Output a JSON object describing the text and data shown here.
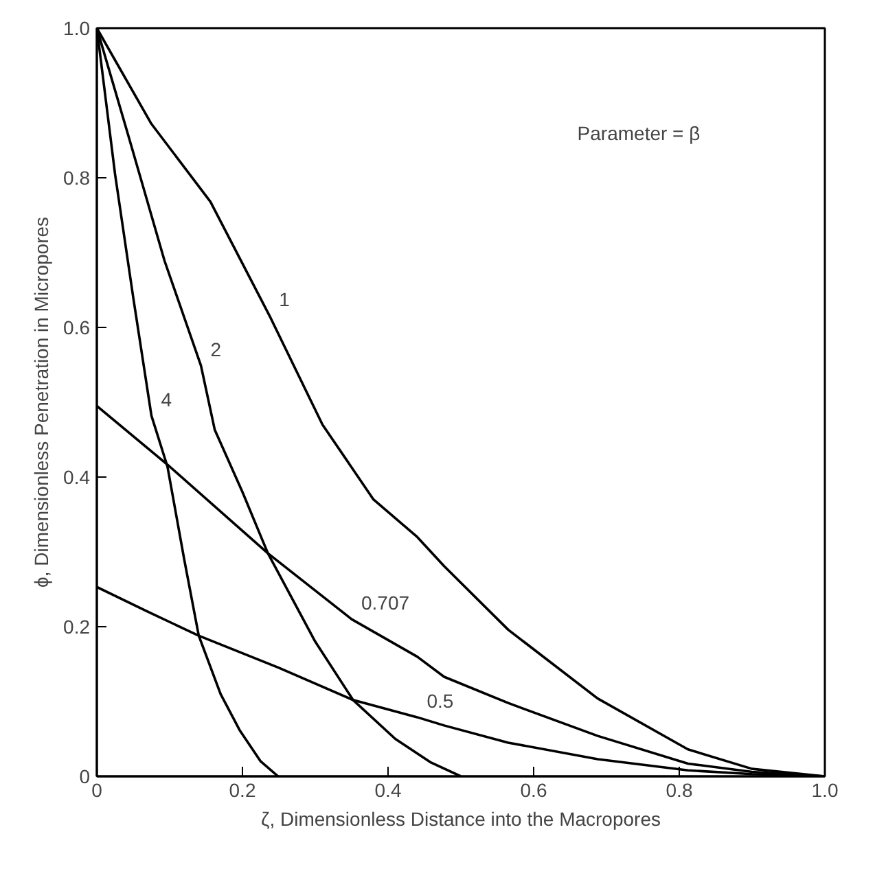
{
  "chart_data": {
    "type": "line",
    "xlabel": "ζ, Dimensionless Distance into the Macropores",
    "ylabel": "ϕ, Dimensionless Penetration in Micropores",
    "xlim": [
      0,
      1
    ],
    "ylim": [
      0,
      1
    ],
    "xticks": [
      0,
      0.2,
      0.4,
      0.6,
      0.8,
      {
        "value": 1,
        "label": "1.0"
      }
    ],
    "yticks": [
      0,
      0.2,
      0.4,
      0.6,
      0.8,
      {
        "value": 1,
        "label": "1.0"
      }
    ],
    "grid": false,
    "marker": "none",
    "line_style": "solid",
    "series": [
      {
        "color": "#000000",
        "x": [
          0,
          0.075,
          0.156,
          0.237,
          0.31,
          0.38,
          0.44,
          0.477,
          0.565,
          0.688,
          0.812,
          0.9,
          1.0
        ],
        "values": [
          1,
          0.872,
          0.768,
          0.616,
          0.47,
          0.37,
          0.32,
          0.281,
          0.196,
          0.104,
          0.036,
          0.01,
          0
        ]
      },
      {
        "color": "#000000",
        "x": [
          0,
          0.044,
          0.093,
          0.143,
          0.162,
          0.2,
          0.235,
          0.3,
          0.352,
          0.41,
          0.458,
          0.5
        ],
        "values": [
          1,
          0.854,
          0.689,
          0.549,
          0.463,
          0.38,
          0.298,
          0.18,
          0.102,
          0.05,
          0.019,
          0
        ]
      },
      {
        "color": "#000000",
        "x": [
          0,
          0.025,
          0.05,
          0.075,
          0.097,
          0.12,
          0.14,
          0.17,
          0.196,
          0.225,
          0.249
        ],
        "values": [
          1,
          0.805,
          0.64,
          0.482,
          0.414,
          0.29,
          0.188,
          0.11,
          0.062,
          0.02,
          0
        ]
      },
      {
        "color": "#000000",
        "x": [
          0,
          0.1,
          0.235,
          0.35,
          0.44,
          0.477,
          0.565,
          0.688,
          0.812,
          0.9,
          1.0
        ],
        "values": [
          0.495,
          0.414,
          0.298,
          0.21,
          0.16,
          0.133,
          0.098,
          0.054,
          0.017,
          0.006,
          0
        ]
      },
      {
        "color": "#000000",
        "x": [
          0,
          0.07,
          0.14,
          0.25,
          0.352,
          0.44,
          0.477,
          0.565,
          0.688,
          0.812,
          0.9,
          1.0
        ],
        "values": [
          0.253,
          0.22,
          0.188,
          0.145,
          0.102,
          0.079,
          0.068,
          0.045,
          0.023,
          0.008,
          0.003,
          0
        ]
      }
    ],
    "annotations": [
      "Parameter = β",
      {
        "text": "1",
        "x": 0.237,
        "y": 0.616
      },
      {
        "text": "2",
        "x": 0.143,
        "y": 0.549
      },
      {
        "text": "4",
        "x": 0.075,
        "y": 0.482
      },
      {
        "text": "0.707",
        "x": 0.35,
        "y": 0.21
      },
      {
        "text": "0.5",
        "x": 0.44,
        "y": 0.079
      }
    ]
  }
}
